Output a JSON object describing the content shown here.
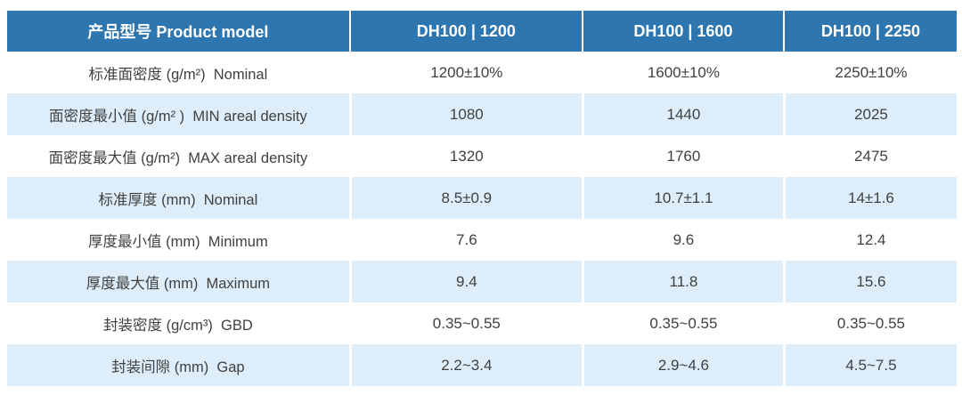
{
  "colors": {
    "header_bg": "#2e76b0",
    "header_text": "#ffffff",
    "row_alt_bg": "#ddeefa",
    "text": "#404040"
  },
  "table": {
    "header": {
      "label": "产品型号 Product model",
      "columns": [
        "DH100 | 1200",
        "DH100 | 1600",
        "DH100 | 2250"
      ]
    },
    "rows": [
      {
        "label": "标准面密度 (g/m²)  Nominal",
        "values": [
          "1200±10%",
          "1600±10%",
          "2250±10%"
        ]
      },
      {
        "label": "面密度最小值 (g/m² )  MIN areal density",
        "values": [
          "1080",
          "1440",
          "2025"
        ]
      },
      {
        "label": "面密度最大值 (g/m²)  MAX areal density",
        "values": [
          "1320",
          "1760",
          "2475"
        ]
      },
      {
        "label": "标准厚度 (mm)  Nominal",
        "values": [
          "8.5±0.9",
          "10.7±1.1",
          "14±1.6"
        ]
      },
      {
        "label": "厚度最小值 (mm)  Minimum",
        "values": [
          "7.6",
          "9.6",
          "12.4"
        ]
      },
      {
        "label": "厚度最大值 (mm)  Maximum",
        "values": [
          "9.4",
          "11.8",
          "15.6"
        ]
      },
      {
        "label": "封装密度 (g/cm³)  GBD",
        "values": [
          "0.35~0.55",
          "0.35~0.55",
          "0.35~0.55"
        ]
      },
      {
        "label": "封装间隙 (mm)  Gap",
        "values": [
          "2.2~3.4",
          "2.9~4.6",
          "4.5~7.5"
        ]
      }
    ]
  }
}
